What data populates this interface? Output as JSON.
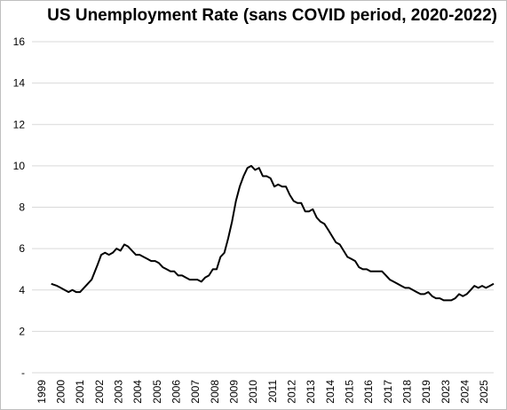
{
  "chart_data": {
    "type": "line",
    "title": "US Unemployment Rate (sans COVID period, 2020-2022)",
    "xlabel": "",
    "ylabel": "",
    "ylim": [
      0,
      16
    ],
    "y_ticks": [
      {
        "value": 0,
        "label": "-"
      },
      {
        "value": 2,
        "label": "2"
      },
      {
        "value": 4,
        "label": "4"
      },
      {
        "value": 6,
        "label": "6"
      },
      {
        "value": 8,
        "label": "8"
      },
      {
        "value": 10,
        "label": "10"
      },
      {
        "value": 12,
        "label": "12"
      },
      {
        "value": 14,
        "label": "14"
      },
      {
        "value": 16,
        "label": "16"
      }
    ],
    "x_ticks": [
      "1999",
      "2000",
      "2001",
      "2002",
      "2003",
      "2004",
      "2005",
      "2006",
      "2007",
      "2008",
      "2009",
      "2010",
      "2011",
      "2012",
      "2013",
      "2014",
      "2015",
      "2016",
      "2017",
      "2018",
      "2019",
      "2023",
      "2024",
      "2025"
    ],
    "grid": "horizontal",
    "legend": "none",
    "line_color": "#000000",
    "series": [
      {
        "x": [
          1999.5,
          1999.8,
          2000.0,
          2000.2,
          2000.4,
          2000.6,
          2000.8,
          2001.0,
          2001.3,
          2001.6,
          2001.9,
          2002.1,
          2002.3,
          2002.5,
          2002.7,
          2002.9,
          2003.1,
          2003.3,
          2003.5,
          2003.7,
          2003.9,
          2004.1,
          2004.3,
          2004.5,
          2004.7,
          2004.9,
          2005.1,
          2005.3,
          2005.5,
          2005.7,
          2005.9,
          2006.1,
          2006.3,
          2006.5,
          2006.7,
          2006.9,
          2007.1,
          2007.3,
          2007.5,
          2007.7,
          2007.9,
          2008.1,
          2008.3,
          2008.5,
          2008.7,
          2008.9,
          2009.1,
          2009.3,
          2009.5,
          2009.7,
          2009.9,
          2010.1,
          2010.3,
          2010.5,
          2010.7,
          2010.9,
          2011.1,
          2011.3,
          2011.5,
          2011.7,
          2011.9,
          2012.1,
          2012.3,
          2012.5,
          2012.7,
          2012.9,
          2013.1,
          2013.3,
          2013.5,
          2013.7,
          2013.9,
          2014.1,
          2014.3,
          2014.5,
          2014.7,
          2014.9,
          2015.1,
          2015.3,
          2015.5,
          2015.7,
          2015.9,
          2016.1,
          2016.3,
          2016.5,
          2016.7,
          2016.9,
          2017.1,
          2017.3,
          2017.5,
          2017.7,
          2017.9,
          2018.1,
          2018.3,
          2018.5,
          2018.7,
          2018.9,
          2019.1,
          2019.3,
          2019.5,
          2019.7,
          2019.9,
          2023.1,
          2023.3,
          2023.5,
          2023.7,
          2023.9,
          2024.1,
          2024.3,
          2024.5,
          2024.7,
          2024.9,
          2025.1,
          2025.3,
          2025.5
        ],
        "y": [
          4.3,
          4.2,
          4.1,
          4.0,
          3.9,
          4.0,
          3.9,
          3.9,
          4.2,
          4.5,
          5.2,
          5.7,
          5.8,
          5.7,
          5.8,
          6.0,
          5.9,
          6.2,
          6.1,
          5.9,
          5.7,
          5.7,
          5.6,
          5.5,
          5.4,
          5.4,
          5.3,
          5.1,
          5.0,
          4.9,
          4.9,
          4.7,
          4.7,
          4.6,
          4.5,
          4.5,
          4.5,
          4.4,
          4.6,
          4.7,
          5.0,
          5.0,
          5.6,
          5.8,
          6.5,
          7.3,
          8.3,
          9.0,
          9.5,
          9.9,
          10.0,
          9.8,
          9.9,
          9.5,
          9.5,
          9.4,
          9.0,
          9.1,
          9.0,
          9.0,
          8.6,
          8.3,
          8.2,
          8.2,
          7.8,
          7.8,
          7.9,
          7.5,
          7.3,
          7.2,
          6.9,
          6.6,
          6.3,
          6.2,
          5.9,
          5.6,
          5.5,
          5.4,
          5.1,
          5.0,
          5.0,
          4.9,
          4.9,
          4.9,
          4.9,
          4.7,
          4.5,
          4.4,
          4.3,
          4.2,
          4.1,
          4.1,
          4.0,
          3.9,
          3.8,
          3.8,
          3.9,
          3.7,
          3.6,
          3.6,
          3.5,
          3.5,
          3.5,
          3.6,
          3.8,
          3.7,
          3.8,
          4.0,
          4.2,
          4.1,
          4.2,
          4.1,
          4.2,
          4.3
        ]
      }
    ]
  }
}
